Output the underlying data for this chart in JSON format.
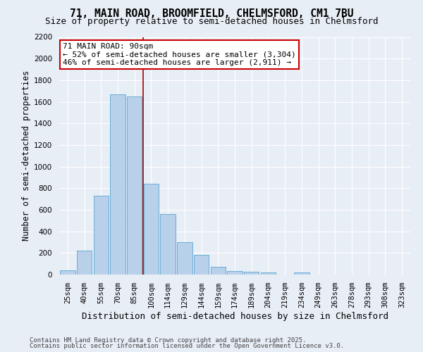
{
  "title1": "71, MAIN ROAD, BROOMFIELD, CHELMSFORD, CM1 7BU",
  "title2": "Size of property relative to semi-detached houses in Chelmsford",
  "xlabel": "Distribution of semi-detached houses by size in Chelmsford",
  "ylabel": "Number of semi-detached properties",
  "categories": [
    "25sqm",
    "40sqm",
    "55sqm",
    "70sqm",
    "85sqm",
    "100sqm",
    "114sqm",
    "129sqm",
    "144sqm",
    "159sqm",
    "174sqm",
    "189sqm",
    "204sqm",
    "219sqm",
    "234sqm",
    "249sqm",
    "263sqm",
    "278sqm",
    "293sqm",
    "308sqm",
    "323sqm"
  ],
  "values": [
    40,
    220,
    730,
    1670,
    1650,
    840,
    560,
    300,
    180,
    70,
    35,
    25,
    20,
    0,
    20,
    0,
    0,
    0,
    0,
    0,
    0
  ],
  "bar_color": "#b8d0ea",
  "bar_edge_color": "#6aaed6",
  "ylim": [
    0,
    2200
  ],
  "yticks": [
    0,
    200,
    400,
    600,
    800,
    1000,
    1200,
    1400,
    1600,
    1800,
    2000,
    2200
  ],
  "red_line_x": 4.5,
  "annotation_line1": "71 MAIN ROAD: 90sqm",
  "annotation_line2": "← 52% of semi-detached houses are smaller (3,304)",
  "annotation_line3": "46% of semi-detached houses are larger (2,911) →",
  "annotation_box_color": "#ffffff",
  "annotation_box_edge": "#cc0000",
  "footnote1": "Contains HM Land Registry data © Crown copyright and database right 2025.",
  "footnote2": "Contains public sector information licensed under the Open Government Licence v3.0.",
  "bg_color": "#e8eef6",
  "grid_color": "#ffffff",
  "title_fontsize": 10.5,
  "subtitle_fontsize": 9,
  "ylabel_fontsize": 8.5,
  "xlabel_fontsize": 9,
  "tick_fontsize": 7.5,
  "annot_fontsize": 8,
  "footnote_fontsize": 6.5
}
